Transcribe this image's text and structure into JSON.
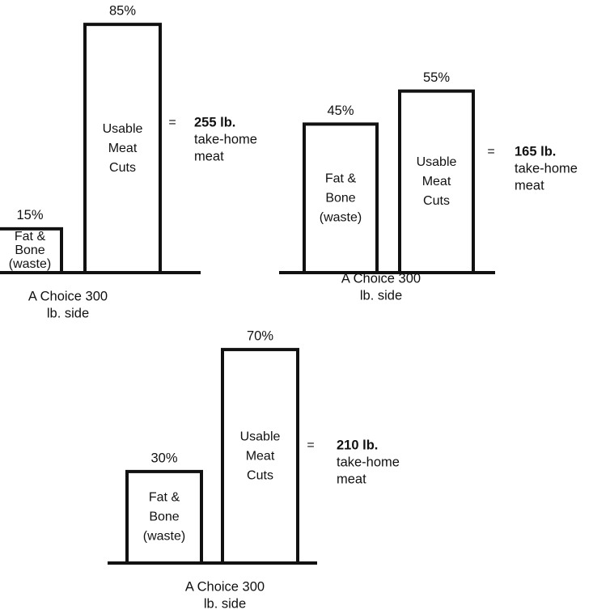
{
  "colors": {
    "ink": "#111111",
    "background": "#ffffff"
  },
  "chart_data": [
    {
      "type": "bar",
      "categories": [
        "Fat & Bone (waste)",
        "Usable Meat Cuts"
      ],
      "values": [
        15,
        85
      ],
      "value_labels": [
        "15%",
        "85%"
      ],
      "bar_text": [
        [
          "Fat &",
          "Bone",
          "(waste)"
        ],
        [
          "Usable",
          "Meat",
          "Cuts"
        ]
      ],
      "result_equals": "=",
      "result_lines": [
        "255 lb.",
        "take-home",
        "meat"
      ],
      "caption_lines": [
        "A Choice 300",
        "lb. side"
      ]
    },
    {
      "type": "bar",
      "categories": [
        "Fat & Bone (waste)",
        "Usable Meat Cuts"
      ],
      "values": [
        45,
        55
      ],
      "value_labels": [
        "45%",
        "55%"
      ],
      "bar_text": [
        [
          "Fat &",
          "Bone",
          "(waste)"
        ],
        [
          "Usable",
          "Meat",
          "Cuts"
        ]
      ],
      "result_equals": "=",
      "result_lines": [
        "165 lb.",
        "take-home",
        "meat"
      ],
      "caption_lines": [
        "A Choice 300",
        "lb. side"
      ]
    },
    {
      "type": "bar",
      "categories": [
        "Fat & Bone (waste)",
        "Usable Meat Cuts"
      ],
      "values": [
        30,
        70
      ],
      "value_labels": [
        "30%",
        "70%"
      ],
      "bar_text": [
        [
          "Fat &",
          "Bone",
          "(waste)"
        ],
        [
          "Usable",
          "Meat",
          "Cuts"
        ]
      ],
      "result_equals": "=",
      "result_lines": [
        "210 lb.",
        "take-home",
        "meat"
      ],
      "caption_lines": [
        "A Choice 300",
        "lb. side"
      ]
    }
  ]
}
